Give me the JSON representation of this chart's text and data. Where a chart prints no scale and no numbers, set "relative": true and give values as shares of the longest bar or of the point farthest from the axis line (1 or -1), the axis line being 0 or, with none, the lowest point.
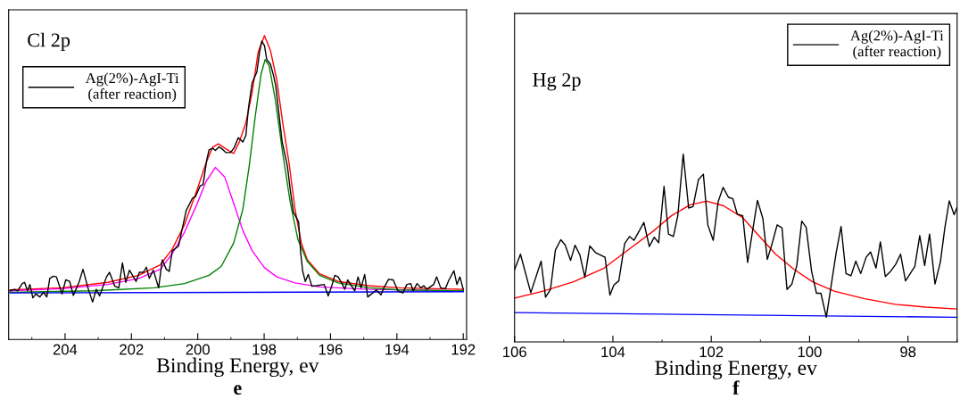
{
  "chart_data": [
    {
      "type": "line",
      "relative": true,
      "xlabel": "Binding Energy, ev",
      "annotations": [
        "Cl 2p",
        "e"
      ],
      "xlim": [
        205.7,
        191.9
      ],
      "xticks": [
        204,
        202,
        200,
        198,
        196,
        194,
        192
      ],
      "legend": "top left",
      "grid": false,
      "marker": "none",
      "line_style": "solid",
      "series": [
        {
          "name": "Ag(2%)-AgI-Ti\n(after reaction)",
          "color": "#000000",
          "x": [
            205.66,
            205.52,
            205.43,
            205.29,
            205.22,
            205.13,
            205.06,
            204.97,
            204.88,
            204.76,
            204.65,
            204.55,
            204.46,
            204.35,
            204.26,
            204.09,
            203.98,
            203.86,
            203.75,
            203.58,
            203.46,
            203.31,
            203.17,
            203.06,
            202.96,
            202.75,
            202.66,
            202.5,
            202.38,
            202.27,
            202.17,
            202.06,
            201.86,
            201.76,
            201.64,
            201.55,
            201.46,
            201.34,
            201.18,
            201.07,
            200.95,
            200.86,
            200.77,
            200.58,
            200.47,
            200.35,
            200.16,
            200.07,
            199.93,
            199.84,
            199.73,
            199.66,
            199.55,
            199.47,
            199.36,
            199.27,
            199.15,
            199.01,
            198.9,
            198.78,
            198.64,
            198.55,
            198.47,
            198.36,
            198.22,
            198.13,
            198.07,
            197.99,
            197.92,
            197.81,
            197.72,
            197.65,
            197.56,
            197.46,
            197.39,
            197.3,
            197.21,
            197.12,
            197.02,
            196.96,
            196.9,
            196.84,
            196.76,
            196.67,
            196.56,
            196.42,
            196.19,
            196.07,
            195.98,
            195.87,
            195.77,
            195.64,
            195.57,
            195.48,
            195.36,
            195.27,
            195.17,
            195.08,
            194.97,
            194.88,
            194.76,
            194.62,
            194.48,
            194.39,
            194.25,
            194.11,
            193.97,
            193.82,
            193.7,
            193.58,
            193.51,
            193.39,
            193.28,
            193.19,
            193.1,
            193.0,
            192.89,
            192.8,
            192.68,
            192.54,
            192.43,
            192.28,
            192.19,
            192.1,
            192.0
          ],
          "values": [
            0.16,
            0.165,
            0.16,
            0.184,
            0.188,
            0.16,
            0.181,
            0.137,
            0.15,
            0.14,
            0.155,
            0.14,
            0.201,
            0.208,
            0.206,
            0.15,
            0.196,
            0.191,
            0.145,
            0.188,
            0.231,
            0.17,
            0.123,
            0.165,
            0.143,
            0.206,
            0.221,
            0.175,
            0.17,
            0.252,
            0.188,
            0.228,
            0.191,
            0.221,
            0.221,
            0.238,
            0.201,
            0.228,
            0.17,
            0.262,
            0.231,
            0.224,
            0.292,
            0.307,
            0.363,
            0.424,
            0.465,
            0.47,
            0.505,
            0.51,
            0.591,
            0.624,
            0.629,
            0.622,
            0.634,
            0.627,
            0.615,
            0.615,
            0.632,
            0.664,
            0.65,
            0.672,
            0.764,
            0.845,
            0.88,
            0.951,
            0.982,
            0.967,
            0.921,
            0.906,
            0.87,
            0.835,
            0.748,
            0.652,
            0.617,
            0.571,
            0.49,
            0.419,
            0.399,
            0.386,
            0.287,
            0.226,
            0.191,
            0.214,
            0.175,
            0.177,
            0.181,
            0.143,
            0.17,
            0.211,
            0.206,
            0.181,
            0.165,
            0.196,
            0.175,
            0.16,
            0.206,
            0.17,
            0.214,
            0.14,
            0.15,
            0.163,
            0.147,
            0.17,
            0.198,
            0.196,
            0.16,
            0.153,
            0.181,
            0.184,
            0.16,
            0.184,
            0.17,
            0.177,
            0.165,
            0.173,
            0.181,
            0.206,
            0.17,
            0.167,
            0.196,
            0.226,
            0.181,
            0.206,
            0.165
          ]
        },
        {
          "color": "#ff0000",
          "x": [
            205.66,
            204.09,
            202.71,
            201.78,
            201.13,
            200.77,
            200.4,
            200.03,
            199.75,
            199.56,
            199.38,
            199.15,
            198.92,
            198.74,
            198.55,
            198.36,
            198.18,
            197.99,
            197.81,
            197.62,
            197.44,
            197.25,
            197.07,
            196.88,
            196.7,
            196.33,
            195.77,
            194.85,
            193.93,
            192.0
          ],
          "values": [
            0.163,
            0.17,
            0.188,
            0.211,
            0.246,
            0.297,
            0.378,
            0.49,
            0.581,
            0.632,
            0.644,
            0.627,
            0.612,
            0.652,
            0.713,
            0.814,
            0.946,
            1,
            0.951,
            0.855,
            0.713,
            0.581,
            0.429,
            0.317,
            0.262,
            0.216,
            0.191,
            0.177,
            0.17,
            0.165
          ]
        },
        {
          "color": "#ff00ff",
          "x": [
            205.66,
            204.09,
            202.71,
            201.78,
            201.13,
            200.77,
            200.4,
            200.03,
            199.75,
            199.47,
            199.19,
            198.92,
            198.64,
            198.36,
            197.99,
            197.62,
            197.07,
            196.33,
            194.85,
            192.0
          ],
          "values": [
            0.16,
            0.167,
            0.181,
            0.201,
            0.231,
            0.282,
            0.353,
            0.444,
            0.52,
            0.566,
            0.535,
            0.449,
            0.358,
            0.292,
            0.236,
            0.206,
            0.186,
            0.173,
            0.165,
            0.16
          ]
        },
        {
          "color": "#008000",
          "x": [
            205.66,
            203.17,
            201.32,
            200.4,
            199.66,
            199.29,
            198.92,
            198.64,
            198.45,
            198.27,
            198.09,
            197.97,
            197.85,
            197.67,
            197.44,
            197.21,
            196.98,
            196.7,
            196.33,
            195.77,
            194.85,
            193.93,
            192.0
          ],
          "values": [
            0.155,
            0.16,
            0.17,
            0.184,
            0.211,
            0.241,
            0.317,
            0.429,
            0.571,
            0.733,
            0.875,
            0.921,
            0.901,
            0.794,
            0.612,
            0.449,
            0.328,
            0.257,
            0.211,
            0.186,
            0.17,
            0.163,
            0.16
          ]
        },
        {
          "color": "#0000ff",
          "x": [
            205.66,
            192.0
          ],
          "values": [
            0.153,
            0.157
          ]
        }
      ]
    },
    {
      "type": "line",
      "relative": true,
      "xlabel": "Binding Energy, ev",
      "annotations": [
        "Hg 2p",
        "f"
      ],
      "xlim": [
        106,
        97.0
      ],
      "xticks": [
        106,
        104,
        102,
        100,
        98
      ],
      "legend": "top right",
      "grid": false,
      "marker": "none",
      "line_style": "solid",
      "series": [
        {
          "name": "Ag(2%)-AgI-Ti\n(after reaction)",
          "color": "#000000",
          "x": [
            106.0,
            105.88,
            105.67,
            105.46,
            105.37,
            105.27,
            105.17,
            105.06,
            104.97,
            104.86,
            104.77,
            104.67,
            104.57,
            104.47,
            104.35,
            104.16,
            104.06,
            103.98,
            103.88,
            103.76,
            103.66,
            103.57,
            103.37,
            103.26,
            103.16,
            103.07,
            102.96,
            102.87,
            102.77,
            102.68,
            102.57,
            102.46,
            102.37,
            102.26,
            102.16,
            102.07,
            101.96,
            101.86,
            101.76,
            101.65,
            101.56,
            101.47,
            101.36,
            101.26,
            101.16,
            101.06,
            100.95,
            100.86,
            100.76,
            100.66,
            100.56,
            100.46,
            100.36,
            100.26,
            100.16,
            100.07,
            99.96,
            99.86,
            99.77,
            99.66,
            99.46,
            99.36,
            99.26,
            99.16,
            99.06,
            98.96,
            98.85,
            98.76,
            98.65,
            98.56,
            98.46,
            98.35,
            98.25,
            98.15,
            98.05,
            97.86,
            97.76,
            97.66,
            97.56,
            97.45,
            97.34,
            97.25,
            97.16,
            97.06,
            97.0
          ],
          "values": [
            0.385,
            0.467,
            0.262,
            0.43,
            0.238,
            0.279,
            0.489,
            0.544,
            0.516,
            0.434,
            0.515,
            0.462,
            0.344,
            0.511,
            0.475,
            0.451,
            0.249,
            0.303,
            0.325,
            0.525,
            0.561,
            0.541,
            0.636,
            0.508,
            0.557,
            0.528,
            0.828,
            0.574,
            0.561,
            0.672,
            1,
            0.713,
            0.721,
            0.864,
            0.893,
            0.623,
            0.541,
            0.746,
            0.823,
            0.77,
            0.762,
            0.68,
            0.672,
            0.423,
            0.59,
            0.754,
            0.656,
            0.439,
            0.525,
            0.623,
            0.607,
            0.279,
            0.308,
            0.407,
            0.643,
            0.61,
            0.377,
            0.259,
            0.259,
            0.131,
            0.475,
            0.615,
            0.364,
            0.352,
            0.43,
            0.364,
            0.451,
            0.479,
            0.393,
            0.533,
            0.348,
            0.377,
            0.413,
            0.467,
            0.325,
            0.402,
            0.566,
            0.407,
            0.574,
            0.308,
            0.426,
            0.607,
            0.751,
            0.677,
            0.718
          ]
        },
        {
          "color": "#ff0000",
          "x": [
            106.0,
            105.42,
            104.8,
            104.18,
            103.68,
            103.18,
            102.81,
            102.43,
            102.09,
            101.75,
            101.37,
            101.06,
            100.69,
            100.31,
            99.94,
            99.5,
            98.88,
            98.26,
            97.64,
            97.0
          ],
          "values": [
            0.233,
            0.27,
            0.32,
            0.393,
            0.492,
            0.59,
            0.672,
            0.73,
            0.749,
            0.725,
            0.664,
            0.574,
            0.467,
            0.385,
            0.32,
            0.27,
            0.23,
            0.2,
            0.185,
            0.175
          ]
        },
        {
          "color": "#0000ff",
          "x": [
            106.0,
            97.0
          ],
          "values": [
            0.156,
            0.131
          ]
        }
      ]
    }
  ]
}
